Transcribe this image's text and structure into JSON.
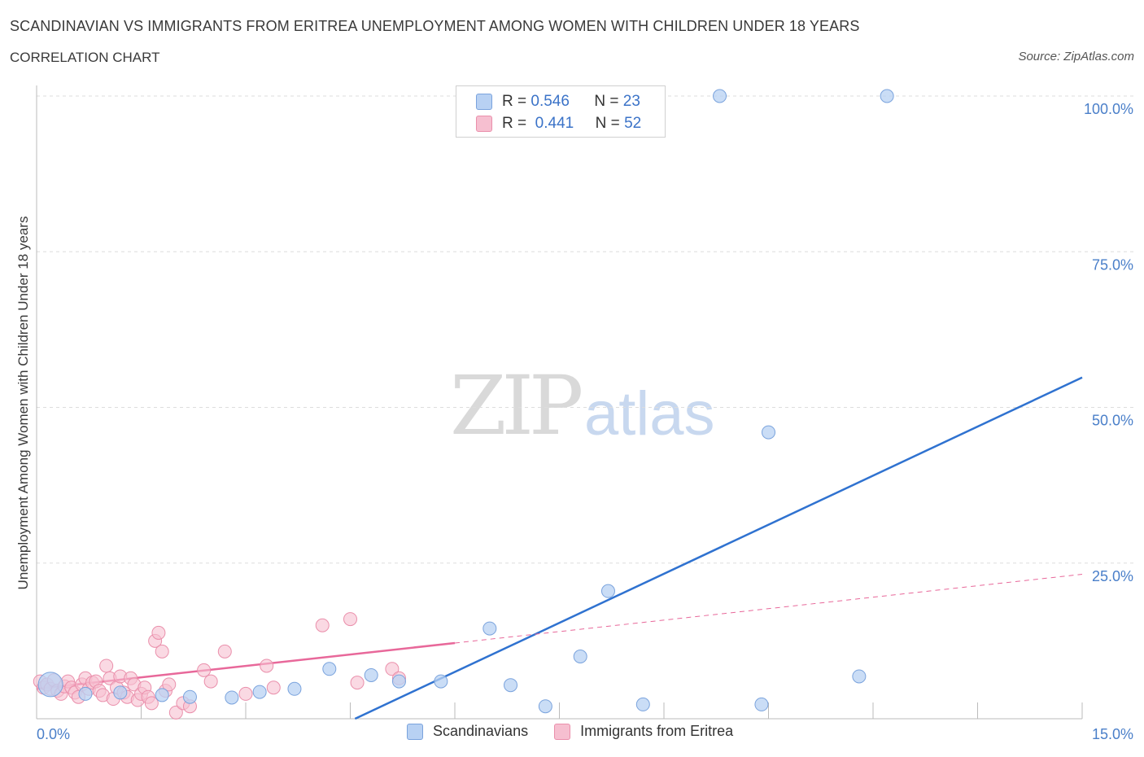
{
  "header": {
    "title": "SCANDINAVIAN VS IMMIGRANTS FROM ERITREA UNEMPLOYMENT AMONG WOMEN WITH CHILDREN UNDER 18 YEARS",
    "subtitle": "CORRELATION CHART",
    "source": "Source: ZipAtlas.com"
  },
  "watermark": {
    "zip": "ZIP",
    "atlas": "atlas"
  },
  "legend": {
    "r_label": "R =",
    "n_label": "N =",
    "rows": [
      {
        "r": "0.546",
        "n": "23"
      },
      {
        "r": "0.441",
        "n": "52"
      }
    ]
  },
  "bottom_legend": [
    "Scandinavians",
    "Immigrants from Eritrea"
  ],
  "colors": {
    "blue_fill": "#b8d1f3",
    "blue_stroke": "#7aa3dd",
    "blue_line": "#2f72d0",
    "pink_fill": "#f6bfd0",
    "pink_stroke": "#ea8fab",
    "pink_line": "#e8689a",
    "axis_text": "#4a7fc9",
    "grid": "#dddddd"
  },
  "chart_data": {
    "type": "scatter",
    "title": "SCANDINAVIAN VS IMMIGRANTS FROM ERITREA UNEMPLOYMENT AMONG WOMEN WITH CHILDREN UNDER 18 YEARS",
    "xlabel": "",
    "ylabel": "Unemployment Among Women with Children Under 18 years",
    "xlim": [
      0,
      15
    ],
    "ylim": [
      0,
      100
    ],
    "x_tick_labels": [
      "0.0%",
      "15.0%"
    ],
    "y_tick_labels": [
      "25.0%",
      "50.0%",
      "75.0%",
      "100.0%"
    ],
    "y_ticks": [
      25,
      50,
      75,
      100
    ],
    "grid": true,
    "legend_position": "top-center",
    "series": [
      {
        "name": "Scandinavians",
        "color": "#b8d1f3",
        "points": [
          [
            0.2,
            5.5
          ],
          [
            0.7,
            4.0
          ],
          [
            1.2,
            4.2
          ],
          [
            1.8,
            3.8
          ],
          [
            2.2,
            3.5
          ],
          [
            2.8,
            3.4
          ],
          [
            3.2,
            4.3
          ],
          [
            3.7,
            4.8
          ],
          [
            4.2,
            8.0
          ],
          [
            4.8,
            7.0
          ],
          [
            5.2,
            6.0
          ],
          [
            5.8,
            6.0
          ],
          [
            6.5,
            14.5
          ],
          [
            6.8,
            5.4
          ],
          [
            7.3,
            2.0
          ],
          [
            7.8,
            10.0
          ],
          [
            8.2,
            20.5
          ],
          [
            8.7,
            2.3
          ],
          [
            9.8,
            100
          ],
          [
            10.4,
            2.3
          ],
          [
            10.5,
            46.0
          ],
          [
            11.8,
            6.8
          ],
          [
            12.2,
            100
          ]
        ],
        "trend": {
          "x": [
            0,
            15
          ],
          "y": [
            -24.0,
            54.8
          ]
        }
      },
      {
        "name": "Immigrants from Eritrea",
        "color": "#f6bfd0",
        "points": [
          [
            0.05,
            6.0
          ],
          [
            0.1,
            5.0
          ],
          [
            0.15,
            5.5
          ],
          [
            0.2,
            4.8
          ],
          [
            0.25,
            6.2
          ],
          [
            0.3,
            4.5
          ],
          [
            0.35,
            4.0
          ],
          [
            0.4,
            5.2
          ],
          [
            0.45,
            6.0
          ],
          [
            0.5,
            5.0
          ],
          [
            0.55,
            4.2
          ],
          [
            0.6,
            3.5
          ],
          [
            0.65,
            5.5
          ],
          [
            0.7,
            6.5
          ],
          [
            0.75,
            4.8
          ],
          [
            0.8,
            5.8
          ],
          [
            0.85,
            6.0
          ],
          [
            0.9,
            4.5
          ],
          [
            0.95,
            3.8
          ],
          [
            1.0,
            8.5
          ],
          [
            1.05,
            6.5
          ],
          [
            1.1,
            3.2
          ],
          [
            1.15,
            5.0
          ],
          [
            1.2,
            6.8
          ],
          [
            1.25,
            4.2
          ],
          [
            1.3,
            3.5
          ],
          [
            1.35,
            6.5
          ],
          [
            1.4,
            5.5
          ],
          [
            1.45,
            3.0
          ],
          [
            1.5,
            4.0
          ],
          [
            1.55,
            5.0
          ],
          [
            1.6,
            3.5
          ],
          [
            1.65,
            2.5
          ],
          [
            1.7,
            12.5
          ],
          [
            1.75,
            13.8
          ],
          [
            1.8,
            10.8
          ],
          [
            1.85,
            4.5
          ],
          [
            1.9,
            5.5
          ],
          [
            2.0,
            1.0
          ],
          [
            2.1,
            2.5
          ],
          [
            2.2,
            2.0
          ],
          [
            2.4,
            7.8
          ],
          [
            2.5,
            6.0
          ],
          [
            2.7,
            10.8
          ],
          [
            3.0,
            4.0
          ],
          [
            3.3,
            8.5
          ],
          [
            3.4,
            5.0
          ],
          [
            4.1,
            15.0
          ],
          [
            4.5,
            16.0
          ],
          [
            4.6,
            5.8
          ],
          [
            5.1,
            8.0
          ],
          [
            5.2,
            6.5
          ]
        ],
        "trend": {
          "x": [
            0,
            15
          ],
          "y": [
            4.8,
            23.2
          ],
          "solid_until_x": 6.0
        }
      }
    ]
  }
}
